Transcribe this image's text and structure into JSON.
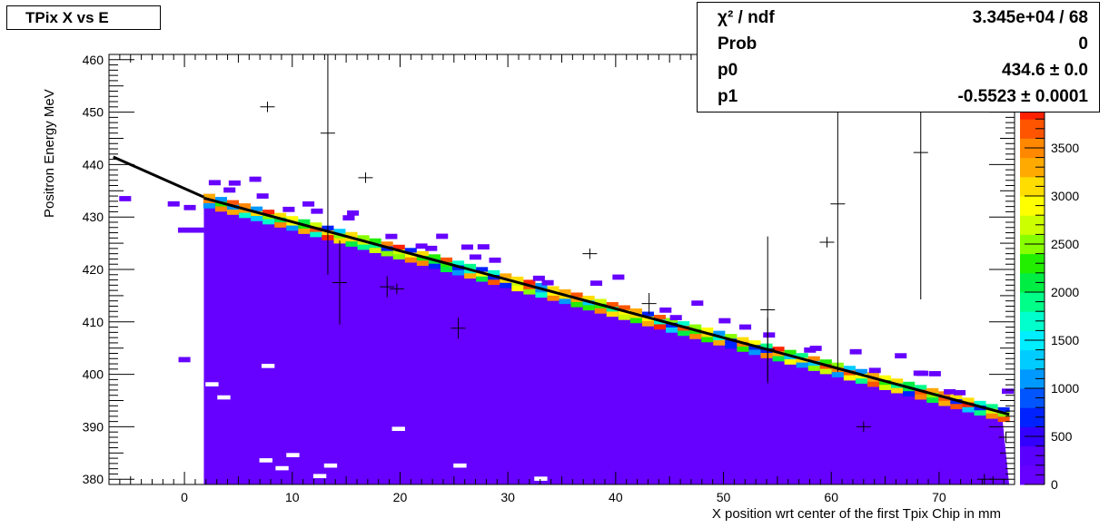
{
  "title": "TPix X vs E",
  "stats": {
    "rows": [
      {
        "label": "χ² / ndf",
        "value": "3.345e+04 / 68"
      },
      {
        "label": "Prob",
        "value": "0"
      },
      {
        "label": "p0",
        "value": "434.6 ± 0.0"
      },
      {
        "label": "p1",
        "value": "-0.5523 ± 0.0001"
      }
    ]
  },
  "chart_data": {
    "type": "heatmap",
    "title": "TPix X vs E",
    "xlabel": "X position wrt center of the first Tpix Chip in mm",
    "ylabel": "Positron Energy MeV",
    "xlim": [
      -7,
      77
    ],
    "ylim": [
      379,
      461
    ],
    "xticks": [
      0,
      10,
      20,
      30,
      40,
      50,
      60,
      70
    ],
    "yticks": [
      380,
      390,
      400,
      410,
      420,
      430,
      440,
      450,
      460
    ],
    "colorbar": {
      "min": 0,
      "max": 4000,
      "ticks": [
        0,
        500,
        1000,
        1500,
        2000,
        2500,
        3000,
        3500
      ],
      "palette": [
        "#6600ff",
        "#5a00ff",
        "#3300ff",
        "#0022ff",
        "#0055ff",
        "#0099ff",
        "#00ccff",
        "#00eeff",
        "#00ffcc",
        "#00ff88",
        "#00ee44",
        "#22ee00",
        "#88ff00",
        "#ccff00",
        "#ffff00",
        "#ffdd00",
        "#ffaa00",
        "#ff8800",
        "#ff5500",
        "#ff2200"
      ]
    },
    "fit_line": {
      "p0": 434.6,
      "p1": -0.5523,
      "x_range": [
        -7,
        77
      ]
    },
    "band": {
      "x_start": 1.8,
      "x_end": 76.5,
      "y_bottom": 379
    },
    "profile_points": [
      {
        "x": 7.7,
        "y": 451,
        "ey": 0
      },
      {
        "x": 13.3,
        "y": 446,
        "ey": 27
      },
      {
        "x": 14.4,
        "y": 417.5,
        "ey": 8
      },
      {
        "x": 16.8,
        "y": 437.5,
        "ey": 0
      },
      {
        "x": 18.8,
        "y": 416.7,
        "ey": 2
      },
      {
        "x": 19.7,
        "y": 416.3,
        "ey": 0
      },
      {
        "x": 25.4,
        "y": 408.8,
        "ey": 2
      },
      {
        "x": 37.6,
        "y": 423,
        "ey": 0
      },
      {
        "x": 43.1,
        "y": 413.5,
        "ey": 2
      },
      {
        "x": 54.1,
        "y": 412.3,
        "ey": 14
      },
      {
        "x": 54.1,
        "y": 404.8,
        "ey": 6
      },
      {
        "x": 59.6,
        "y": 425.2,
        "ey": 0
      },
      {
        "x": 60.6,
        "y": 432.5,
        "ey": 32
      },
      {
        "x": 63,
        "y": 390,
        "ey": 0
      },
      {
        "x": 68.3,
        "y": 442.3,
        "ey": 28
      },
      {
        "x": 74.2,
        "y": 380,
        "ey": 0
      },
      {
        "x": 76.2,
        "y": 388,
        "ey": 0
      }
    ]
  }
}
